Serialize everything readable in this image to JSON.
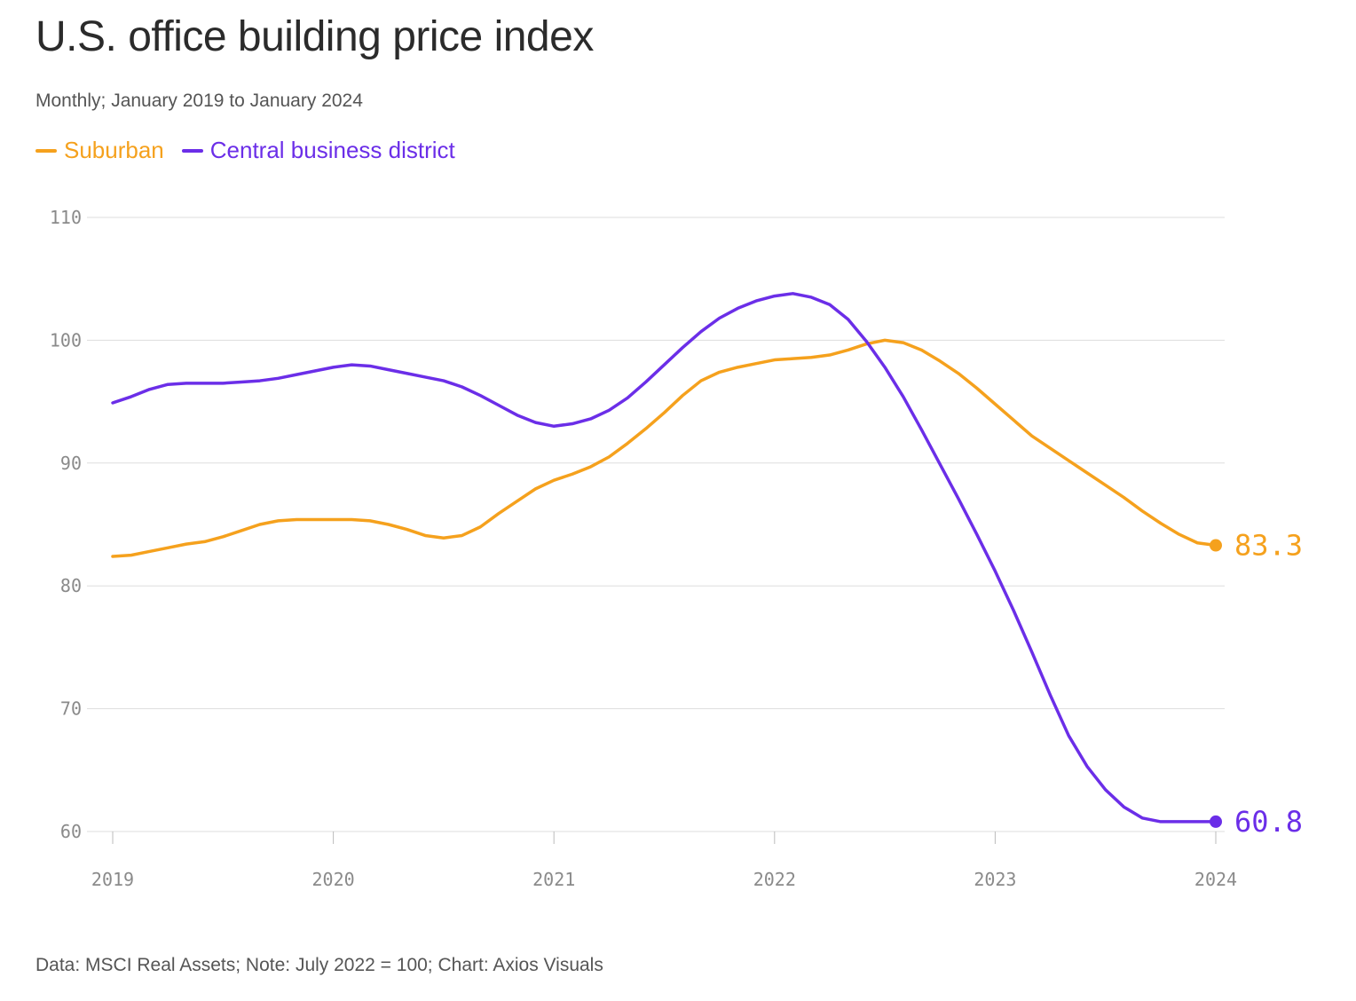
{
  "title": "U.S. office building price index",
  "subtitle": "Monthly; January 2019 to January 2024",
  "footer": "Data: MSCI Real Assets; Note: July 2022 = 100; Chart: Axios Visuals",
  "colors": {
    "suburban": "#f5a11d",
    "cbd": "#6b2ee8",
    "grid": "#dddddd",
    "axis_text": "#8a8a8a"
  },
  "chart_data": {
    "type": "line",
    "title": "U.S. office building price index",
    "subtitle": "Monthly; January 2019 to January 2024",
    "x_start": "2019-01",
    "x_end": "2024-01",
    "x_ticks": [
      "2019",
      "2020",
      "2021",
      "2022",
      "2023",
      "2024"
    ],
    "y_ticks": [
      60,
      70,
      80,
      90,
      100,
      110
    ],
    "ylim": [
      60,
      110
    ],
    "grid": true,
    "legend_position": "top-left",
    "end_labels": [
      "83.3",
      "60.8"
    ],
    "series": [
      {
        "name": "Suburban",
        "color": "#f5a11d",
        "values": [
          82.4,
          82.5,
          82.8,
          83.1,
          83.4,
          83.6,
          84.0,
          84.5,
          85.0,
          85.3,
          85.4,
          85.4,
          85.4,
          85.4,
          85.3,
          85.0,
          84.6,
          84.1,
          83.9,
          84.1,
          84.8,
          85.9,
          86.9,
          87.9,
          88.6,
          89.1,
          89.7,
          90.5,
          91.6,
          92.8,
          94.1,
          95.5,
          96.7,
          97.4,
          97.8,
          98.1,
          98.4,
          98.5,
          98.6,
          98.8,
          99.2,
          99.7,
          100.0,
          99.8,
          99.2,
          98.3,
          97.3,
          96.1,
          94.8,
          93.5,
          92.2,
          91.2,
          90.2,
          89.2,
          88.2,
          87.2,
          86.1,
          85.1,
          84.2,
          83.5,
          83.3
        ]
      },
      {
        "name": "Central business district",
        "color": "#6b2ee8",
        "values": [
          94.9,
          95.4,
          96.0,
          96.4,
          96.5,
          96.5,
          96.5,
          96.6,
          96.7,
          96.9,
          97.2,
          97.5,
          97.8,
          98.0,
          97.9,
          97.6,
          97.3,
          97.0,
          96.7,
          96.2,
          95.5,
          94.7,
          93.9,
          93.3,
          93.0,
          93.2,
          93.6,
          94.3,
          95.3,
          96.6,
          98.0,
          99.4,
          100.7,
          101.8,
          102.6,
          103.2,
          103.6,
          103.8,
          103.5,
          102.9,
          101.7,
          99.9,
          97.8,
          95.4,
          92.7,
          89.9,
          87.1,
          84.2,
          81.2,
          78.0,
          74.6,
          71.1,
          67.8,
          65.3,
          63.4,
          62.0,
          61.1,
          60.8,
          60.8,
          60.8,
          60.8
        ]
      }
    ]
  }
}
